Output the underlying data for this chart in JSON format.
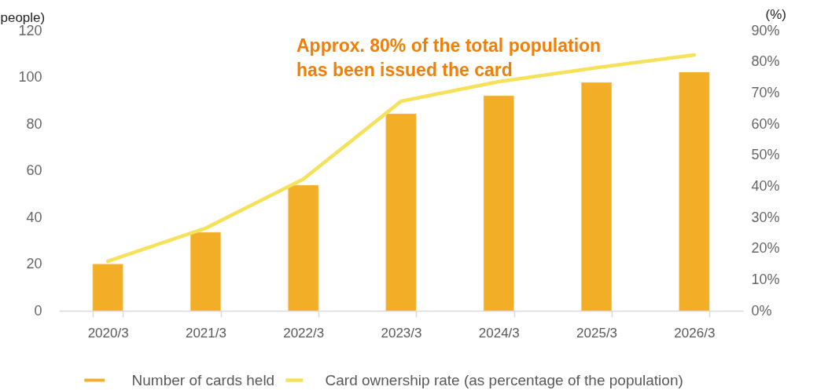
{
  "chart_data": {
    "type": "bar",
    "ylabel": "people)",
    "y2label": "(%)",
    "categories": [
      "2020/3",
      "2021/3",
      "2022/3",
      "2023/3",
      "2024/3",
      "2025/3",
      "2026/3"
    ],
    "series": [
      {
        "name": "Number of cards held",
        "color": "#f2ae27",
        "values": [
          20,
          33.6,
          53.8,
          84.4,
          92.1,
          97.8,
          102.2
        ]
      },
      {
        "name": "Card ownership rate (as percentage of the population)",
        "type": "line",
        "axis": "y2",
        "color": "#f5e15a",
        "values": [
          15.9,
          26.5,
          42.3,
          67.3,
          73.6,
          78.1,
          82.2
        ]
      }
    ],
    "ylim": [
      0,
      120
    ],
    "yticks": [
      0,
      20,
      40,
      60,
      80,
      100,
      120
    ],
    "y2lim": [
      0,
      90
    ],
    "y2ticks": [
      {
        "value": 0,
        "label": "0%"
      },
      {
        "value": 10,
        "label": "10%"
      },
      {
        "value": 20,
        "label": "20%"
      },
      {
        "value": 30,
        "label": "30%"
      },
      {
        "value": 40,
        "label": "40%"
      },
      {
        "value": 50,
        "label": "50%"
      },
      {
        "value": 60,
        "label": "60%"
      },
      {
        "value": 70,
        "label": "70%"
      },
      {
        "value": 80,
        "label": "80%"
      },
      {
        "value": 90,
        "label": "90%"
      }
    ],
    "annotations": [
      "Approx. 80% of the total population has been issued the card"
    ],
    "grid": false,
    "legend": "bottom"
  }
}
